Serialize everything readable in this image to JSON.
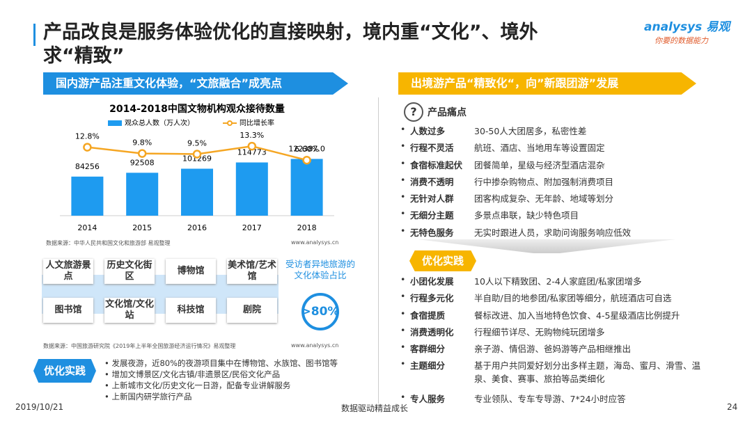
{
  "header": {
    "title": "产品改良是服务体验优化的直接映射，境内重“文化”、境外求“精致”",
    "logo": "analysys 易观",
    "slogan": "你要的数据能力"
  },
  "left": {
    "banner": "国内游产品注重文化体验，“文旅融合”成亮点",
    "source1": "数据来源：中华人民共和国文化和旅游部 易观整理",
    "website1": "www.analysys.cn",
    "venues": [
      "人文旅游景点",
      "历史文化街区",
      "博物馆",
      "美术馆/艺术馆",
      "图书馆",
      "文化馆/文化站",
      "科技馆",
      "剧院"
    ],
    "stat_label": "受访者异地旅游的文化体验占比",
    "stat_value": ">80%",
    "source2": "数据来源：中国旅游研究院《2019年上半年全国旅游经济运行情况》易观整理",
    "website2": "www.analysys.cn",
    "optimize_label": "优化实践",
    "bullets": [
      "发展夜游，近80%的夜游项目集中在博物馆、水族馆、图书馆等",
      "增加文博景区/文化古镇/非遗景区/民俗文化产品",
      "上新城市文化/历史文化一日游，配备专业讲解服务",
      "上新国内研学旅行产品"
    ]
  },
  "chart_data": {
    "type": "bar",
    "title": "2014-2018中国文物机构观众接待数量",
    "categories": [
      "2014",
      "2015",
      "2016",
      "2017",
      "2018"
    ],
    "series": [
      {
        "name": "观众总人数（万人次）",
        "color": "#1e9bf0",
        "values": [
          84256,
          92508,
          101269,
          114773,
          122387
        ],
        "value_labels": [
          "84256",
          "92508",
          "101269",
          "114773",
          "122387.0"
        ]
      },
      {
        "name": "同比增长率",
        "type": "line",
        "axis": "y2",
        "color": "#f5a623",
        "values": [
          12.8,
          9.8,
          9.5,
          13.3,
          6.6
        ],
        "value_labels": [
          "12.8%",
          "9.8%",
          "9.5%",
          "13.3%",
          "6.60%"
        ]
      }
    ],
    "ylim": [
      0,
      180000
    ],
    "y2lim": [
      -20,
      20
    ]
  },
  "right": {
    "banner": "出境游产品“精致化“，向”新跟团游”发展",
    "pain_title": "产品痛点",
    "pain_items": [
      {
        "term": "人数过多",
        "desc": "30-50人大团居多，私密性差"
      },
      {
        "term": "行程不灵活",
        "desc": "航班、酒店、当地用车等设置固定"
      },
      {
        "term": "食宿标准起伏",
        "desc": "团餐简单，星级与经济型酒店混杂"
      },
      {
        "term": "消费不透明",
        "desc": "行中掺杂购物点、附加强制消费项目"
      },
      {
        "term": "无针对人群",
        "desc": "团客构成复杂、无年龄、地域等划分"
      },
      {
        "term": "无细分主题",
        "desc": "多景点串联，缺少特色项目"
      },
      {
        "term": "无特色服务",
        "desc": "无实时跟进人员，求助问询服务响应低效"
      }
    ],
    "opt_title": "优化实践",
    "opt_items": [
      {
        "term": "小团化发展",
        "desc": "10人以下精致团、2-4人家庭团/私家团增多"
      },
      {
        "term": "行程多元化",
        "desc": "半自助/目的地参团/私家团等细分，航班酒店可自选"
      },
      {
        "term": "食宿提质",
        "desc": "餐标改进、加入当地特色饮食、4-5星级酒店比例提升"
      },
      {
        "term": "消费透明化",
        "desc": "行程细节详尽、无购物纯玩团增多"
      },
      {
        "term": "客群细分",
        "desc": "亲子游、情侣游、爸妈游等产品相继推出"
      },
      {
        "term": "主题细分",
        "desc": "基于用户共同爱好划分出多样主题，海岛、蜜月、滑雪、温泉、美食、赛事、旅拍等品类细化"
      },
      {
        "term": "专人服务",
        "desc": "专业领队、专车专导游、7*24小时应答"
      }
    ]
  },
  "footer": {
    "date": "2019/10/21",
    "center": "数据驱动精益成长",
    "page": "24"
  }
}
